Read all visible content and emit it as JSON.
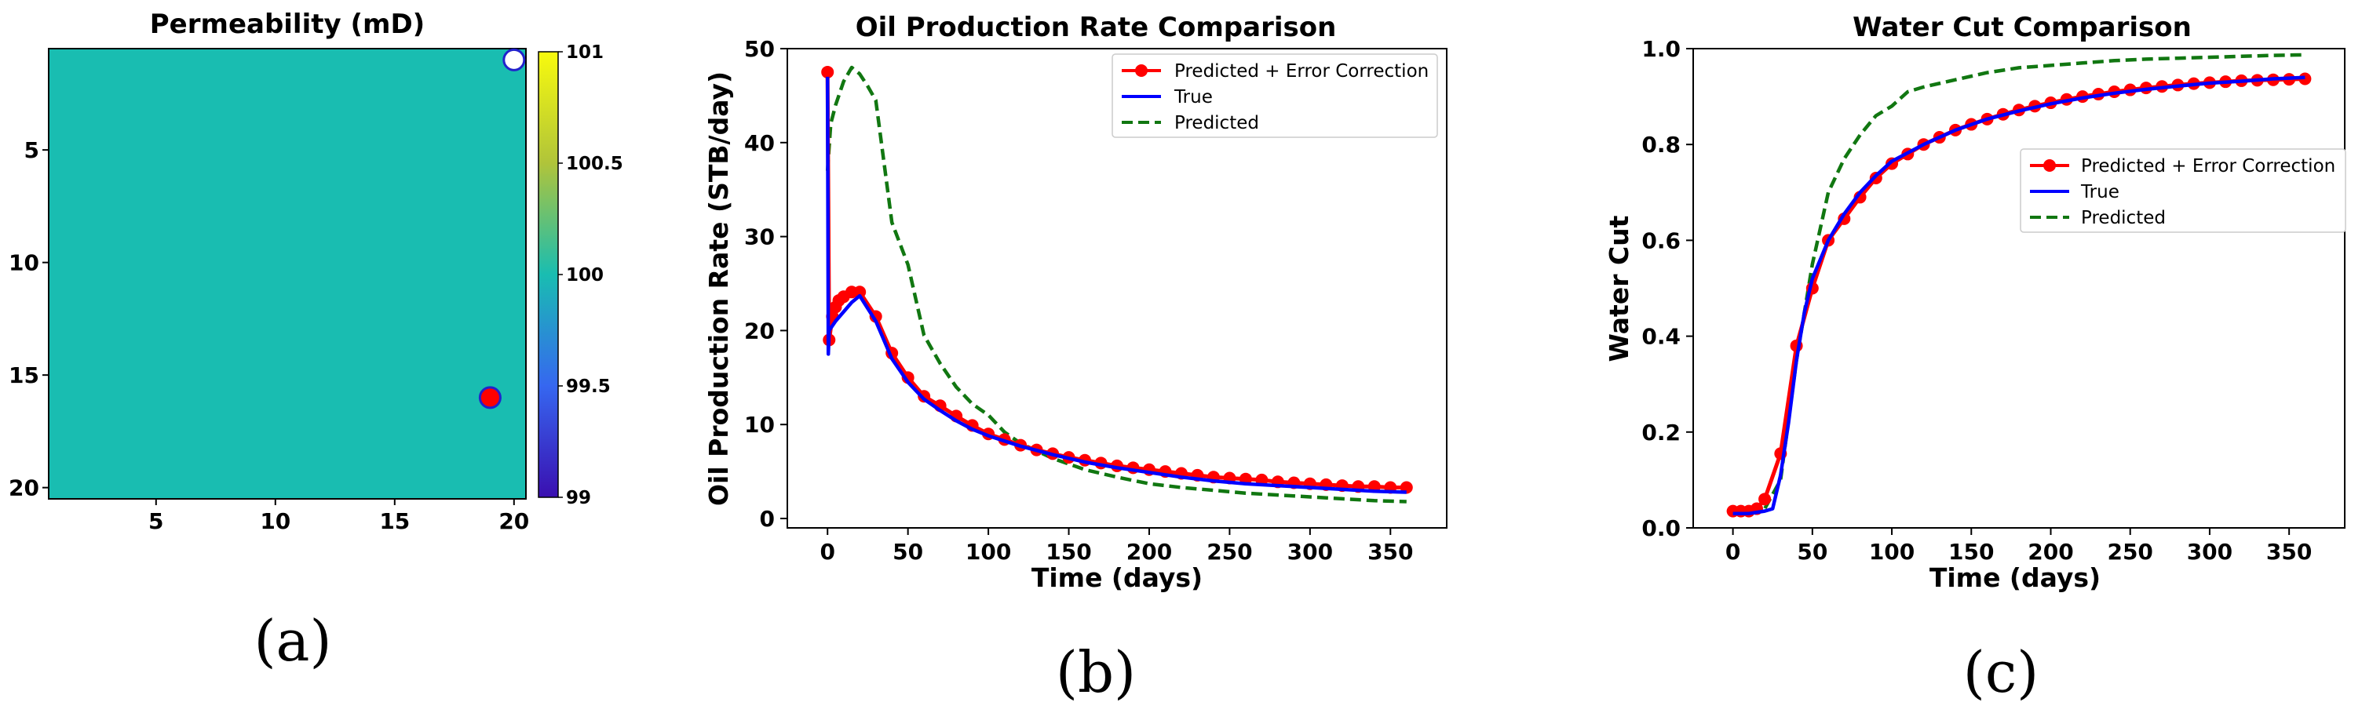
{
  "chart_data": [
    {
      "type": "heatmap",
      "title": "Permeability (mD)",
      "panel_label": "(a)",
      "xlim": [
        0.5,
        20.5
      ],
      "ylim": [
        20.5,
        0.5
      ],
      "xticks": [
        5,
        10,
        15,
        20
      ],
      "yticks": [
        5,
        10,
        15,
        20
      ],
      "grid_value": 100,
      "color": "#19bdb1",
      "colorbar": {
        "range": [
          99,
          101
        ],
        "ticks": [
          99,
          99.5,
          100,
          100.5,
          101
        ],
        "tick_labels": [
          "99",
          "99.5",
          "100",
          "100.5",
          "101"
        ],
        "colors": [
          "#3a0fb0",
          "#3667f0",
          "#19bdb1",
          "#b0c43a",
          "#f8fa0d"
        ]
      },
      "wells": [
        {
          "name": "injector",
          "x": 20,
          "y": 1,
          "fill": "#ffffff",
          "stroke": "#2222cc"
        },
        {
          "name": "producer",
          "x": 19,
          "y": 16,
          "fill": "#ff0000",
          "stroke": "#2222cc"
        }
      ]
    },
    {
      "type": "line",
      "title": "Oil Production Rate Comparison",
      "panel_label": "(b)",
      "xlabel": "Time (days)",
      "ylabel": "Oil Production Rate (STB/day)",
      "xlim": [
        -25,
        385
      ],
      "ylim": [
        -1,
        50
      ],
      "xticks": [
        0,
        50,
        100,
        150,
        200,
        250,
        300,
        350
      ],
      "yticks": [
        0,
        10,
        20,
        30,
        40,
        50
      ],
      "legend_position": "top-right",
      "series": [
        {
          "name": "Predicted + Error Correction",
          "color": "#ff0000",
          "style": "solid-markers",
          "x": [
            0,
            1,
            3,
            5,
            7,
            10,
            15,
            20,
            30,
            40,
            50,
            60,
            70,
            80,
            90,
            100,
            110,
            120,
            130,
            140,
            150,
            160,
            170,
            180,
            190,
            200,
            210,
            220,
            230,
            240,
            250,
            260,
            270,
            280,
            290,
            300,
            310,
            320,
            330,
            340,
            350,
            360
          ],
          "y": [
            47.5,
            19,
            21.5,
            22.5,
            23.2,
            23.6,
            24.1,
            24.1,
            21.5,
            17.6,
            15.0,
            13.0,
            12.0,
            10.9,
            9.9,
            9.0,
            8.4,
            7.8,
            7.3,
            6.9,
            6.5,
            6.2,
            5.9,
            5.6,
            5.4,
            5.2,
            5.0,
            4.8,
            4.6,
            4.4,
            4.3,
            4.2,
            4.1,
            3.9,
            3.8,
            3.7,
            3.6,
            3.5,
            3.4,
            3.4,
            3.3,
            3.3
          ]
        },
        {
          "name": "True",
          "color": "#0000ff",
          "style": "solid",
          "x": [
            0,
            0.5,
            1,
            3,
            5,
            10,
            15,
            20,
            30,
            40,
            50,
            60,
            70,
            80,
            90,
            100,
            120,
            140,
            160,
            180,
            200,
            220,
            240,
            260,
            280,
            300,
            320,
            340,
            360
          ],
          "y": [
            47,
            17.5,
            20,
            20.5,
            21,
            22,
            23,
            23.7,
            21,
            17,
            14.5,
            12.7,
            11.5,
            10.4,
            9.5,
            8.8,
            7.7,
            6.8,
            6.0,
            5.4,
            4.9,
            4.4,
            4.0,
            3.7,
            3.5,
            3.3,
            3.1,
            2.9,
            2.8
          ]
        },
        {
          "name": "Predicted",
          "color": "#117711",
          "style": "dashed",
          "x": [
            0,
            2,
            5,
            10,
            15,
            20,
            25,
            30,
            40,
            50,
            60,
            70,
            80,
            90,
            100,
            110,
            120,
            140,
            160,
            180,
            200,
            220,
            240,
            260,
            280,
            300,
            320,
            340,
            360
          ],
          "y": [
            37,
            42,
            44,
            46.5,
            48,
            47.3,
            46,
            44.5,
            31.5,
            27,
            19.5,
            16.5,
            14.0,
            12.2,
            11.0,
            9.2,
            8.0,
            6.4,
            5.2,
            4.4,
            3.7,
            3.3,
            3.0,
            2.7,
            2.5,
            2.3,
            2.1,
            1.9,
            1.8
          ]
        }
      ]
    },
    {
      "type": "line",
      "title": "Water Cut Comparison",
      "panel_label": "(c)",
      "xlabel": "Time (days)",
      "ylabel": "Water Cut",
      "xlim": [
        -25,
        385
      ],
      "ylim": [
        0,
        1.0
      ],
      "xticks": [
        0,
        50,
        100,
        150,
        200,
        250,
        300,
        350
      ],
      "yticks": [
        0.0,
        0.2,
        0.4,
        0.6,
        0.8,
        1.0
      ],
      "ytick_labels": [
        "0.0",
        "0.2",
        "0.4",
        "0.6",
        "0.8",
        "1.0"
      ],
      "legend_position": "center-right",
      "series": [
        {
          "name": "Predicted + Error Correction",
          "color": "#ff0000",
          "style": "solid-markers",
          "x": [
            0,
            5,
            10,
            15,
            20,
            30,
            40,
            50,
            60,
            70,
            80,
            90,
            100,
            110,
            120,
            130,
            140,
            150,
            160,
            170,
            180,
            190,
            200,
            210,
            220,
            230,
            240,
            250,
            260,
            270,
            280,
            290,
            300,
            310,
            320,
            330,
            340,
            350,
            360
          ],
          "y": [
            0.035,
            0.035,
            0.035,
            0.04,
            0.06,
            0.155,
            0.38,
            0.5,
            0.6,
            0.645,
            0.69,
            0.73,
            0.76,
            0.78,
            0.8,
            0.815,
            0.83,
            0.842,
            0.853,
            0.863,
            0.872,
            0.88,
            0.887,
            0.894,
            0.9,
            0.905,
            0.91,
            0.914,
            0.918,
            0.921,
            0.924,
            0.927,
            0.929,
            0.931,
            0.933,
            0.934,
            0.935,
            0.936,
            0.937
          ]
        },
        {
          "name": "True",
          "color": "#0000ff",
          "style": "solid",
          "x": [
            0,
            10,
            20,
            25,
            30,
            35,
            40,
            45,
            50,
            60,
            70,
            80,
            90,
            100,
            120,
            140,
            160,
            180,
            200,
            220,
            240,
            260,
            280,
            300,
            320,
            340,
            360
          ],
          "y": [
            0.03,
            0.03,
            0.035,
            0.04,
            0.11,
            0.22,
            0.35,
            0.45,
            0.52,
            0.6,
            0.655,
            0.7,
            0.735,
            0.765,
            0.8,
            0.83,
            0.853,
            0.87,
            0.885,
            0.897,
            0.907,
            0.915,
            0.922,
            0.928,
            0.932,
            0.937,
            0.94
          ]
        },
        {
          "name": "Predicted",
          "color": "#117711",
          "style": "dashed",
          "x": [
            0,
            10,
            20,
            30,
            40,
            50,
            60,
            70,
            80,
            90,
            100,
            110,
            120,
            140,
            160,
            180,
            200,
            220,
            240,
            260,
            280,
            300,
            320,
            340,
            360
          ],
          "y": [
            0.03,
            0.03,
            0.04,
            0.1,
            0.35,
            0.55,
            0.7,
            0.77,
            0.82,
            0.86,
            0.88,
            0.91,
            0.92,
            0.935,
            0.95,
            0.96,
            0.965,
            0.97,
            0.975,
            0.978,
            0.98,
            0.982,
            0.984,
            0.986,
            0.987
          ]
        }
      ]
    }
  ]
}
